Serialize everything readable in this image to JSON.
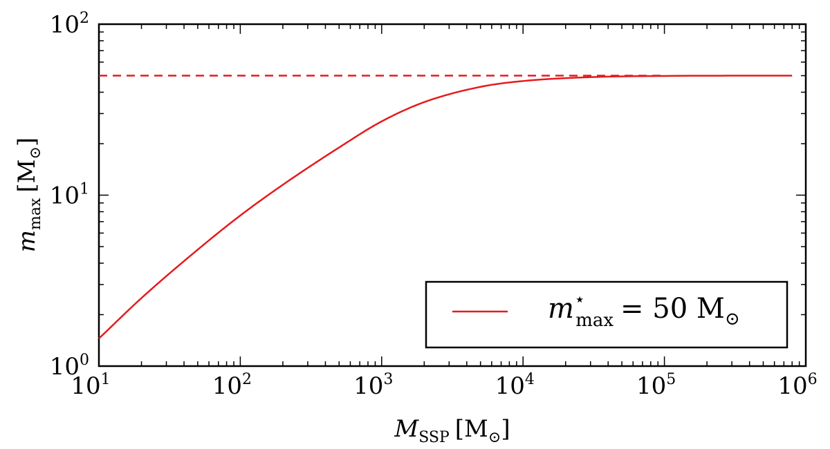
{
  "chart_data": {
    "type": "line",
    "xscale": "log",
    "yscale": "log",
    "xlim": [
      10,
      1000000
    ],
    "ylim": [
      1,
      100
    ],
    "x_tick_labels": [
      {
        "base": "10",
        "exp": "1"
      },
      {
        "base": "10",
        "exp": "2"
      },
      {
        "base": "10",
        "exp": "3"
      },
      {
        "base": "10",
        "exp": "4"
      },
      {
        "base": "10",
        "exp": "5"
      },
      {
        "base": "10",
        "exp": "6"
      }
    ],
    "y_tick_labels": [
      {
        "base": "10",
        "exp": "0"
      },
      {
        "base": "10",
        "exp": "1"
      },
      {
        "base": "10",
        "exp": "2"
      }
    ],
    "xlabel": {
      "symbol": "M",
      "sub": "SSP",
      "unit_open": "[M",
      "unit_sub": "⊙",
      "unit_close": "]"
    },
    "ylabel": {
      "symbol": "m",
      "sub": "max",
      "unit_open": "[M",
      "unit_sub": "⊙",
      "unit_close": "]"
    },
    "series": [
      {
        "name": "m_max* = 50 M_sun",
        "style": "solid",
        "color": "#e41a1c",
        "x": [
          10,
          20,
          50,
          100,
          200,
          500,
          1000,
          2000,
          5000,
          10000,
          30000,
          100000,
          800000
        ],
        "y": [
          1.45,
          2.5,
          4.8,
          7.6,
          11.5,
          19.0,
          27.0,
          35.0,
          43.0,
          46.5,
          49.0,
          49.8,
          50.0
        ]
      },
      {
        "name": "asymptote",
        "style": "dashed",
        "color": "#e41a1c",
        "x": [
          10,
          100000
        ],
        "y": [
          50,
          50
        ]
      }
    ],
    "legend": {
      "location": "lower-right",
      "symbol": "m",
      "sup": "⋆",
      "sub": "max",
      "equals": "= 50 M",
      "unit_sub": "⊙"
    },
    "grid": false
  }
}
